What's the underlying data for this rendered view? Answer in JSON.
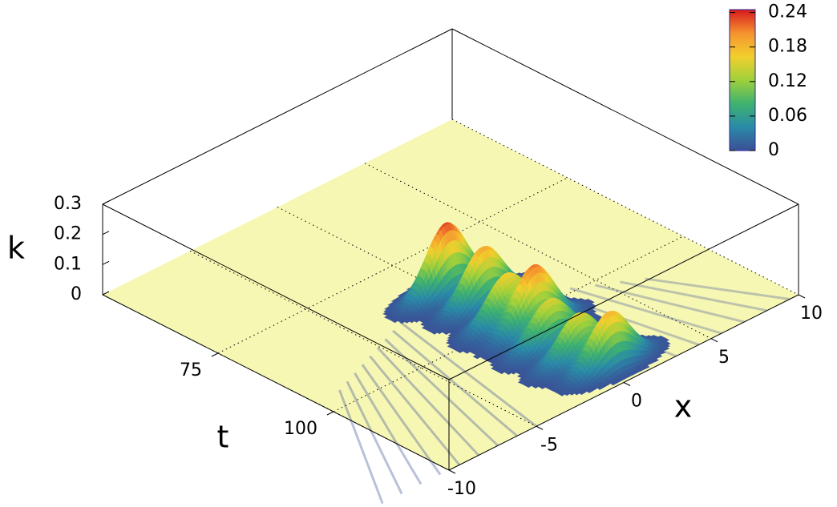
{
  "chart_data": {
    "type": "surface3d",
    "xlabel": "x",
    "ylabel": "t",
    "zlabel": "k",
    "xlim": [
      -10,
      10
    ],
    "xticks": [
      -10,
      -5,
      0,
      5,
      10
    ],
    "ylim": [
      50,
      125
    ],
    "yticks": [
      75,
      100
    ],
    "zlim": [
      0,
      0.3
    ],
    "zticks": [
      0,
      0.1,
      0.2,
      0.3
    ],
    "cblim": [
      0,
      0.245
    ],
    "cbticks": [
      0,
      0.06,
      0.12,
      0.18,
      0.24
    ],
    "palette": [
      "#3b4f96",
      "#2a8aa8",
      "#3fb26f",
      "#9fd03b",
      "#f2cf2e",
      "#f5932f",
      "#d7191c"
    ],
    "floor_color": "#f7f7b4",
    "grid": true,
    "peaks": {
      "x": [
        0,
        0.4,
        0,
        0.4,
        0,
        0,
        0.5
      ],
      "t": [
        86.5,
        93,
        99.5,
        104,
        109,
        115,
        120
      ],
      "k": [
        0.23,
        0.19,
        0.16,
        0.21,
        0.15,
        0.15,
        0.18
      ]
    }
  }
}
